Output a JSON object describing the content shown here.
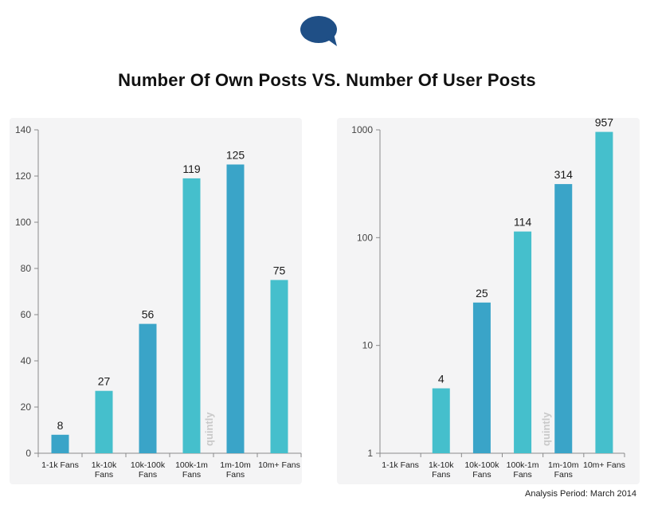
{
  "title": "Number Of Own Posts  VS.  Number Of User Posts",
  "footer": "Analysis Period: March 2014",
  "watermark": "quintly",
  "icon": "speech-bubble-icon",
  "colors": {
    "bar_light": "#45bfcc",
    "bar_dark": "#3aa4c8",
    "icon": "#1f4f86",
    "axis": "#8a8a8a"
  },
  "chart_data": [
    {
      "type": "bar",
      "categories": [
        "1-1k Fans",
        "1k-10k\nFans",
        "10k-100k\nFans",
        "100k-1m\nFans",
        "1m-10m\nFans",
        "10m+ Fans"
      ],
      "values": [
        8,
        27,
        56,
        119,
        125,
        75
      ],
      "data_labels": [
        "8",
        "27",
        "56",
        "119",
        "125",
        "75"
      ],
      "ylim": [
        0,
        140
      ],
      "yticks": [
        0,
        20,
        40,
        60,
        80,
        100,
        120,
        140
      ],
      "scale": "linear",
      "grid": false
    },
    {
      "type": "bar",
      "categories": [
        "1-1k Fans",
        "1k-10k\nFans",
        "10k-100k\nFans",
        "100k-1m\nFans",
        "1m-10m\nFans",
        "10m+ Fans"
      ],
      "values": [
        null,
        4,
        25,
        114,
        314,
        957
      ],
      "data_labels": [
        "",
        "4",
        "25",
        "114",
        "314",
        "957"
      ],
      "ylim": [
        1,
        1000
      ],
      "yticks": [
        1,
        10,
        100,
        1000
      ],
      "scale": "log",
      "grid": false
    }
  ]
}
